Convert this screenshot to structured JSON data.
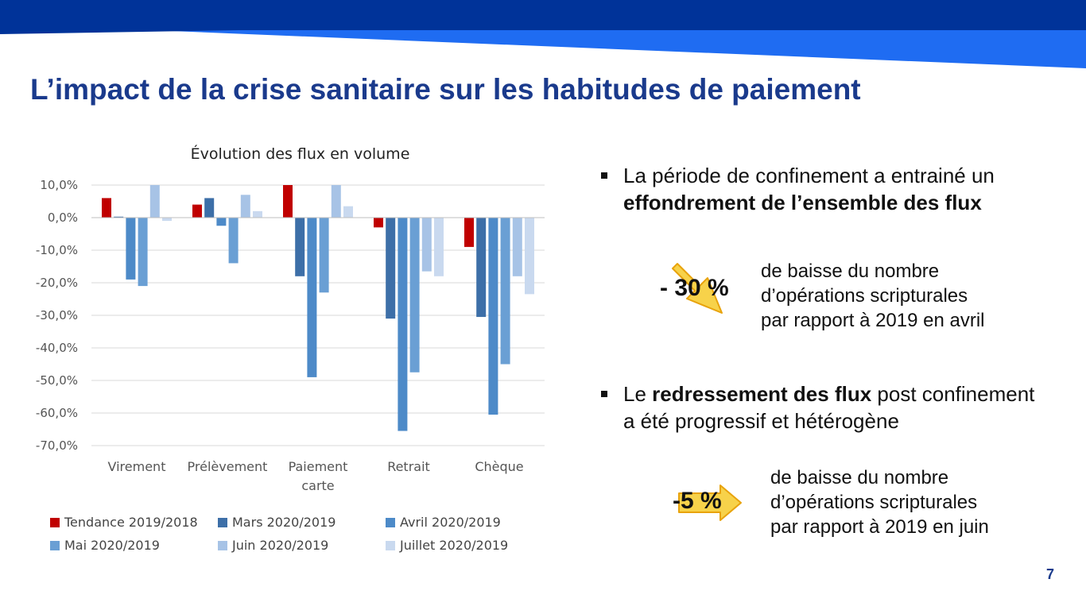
{
  "slide": {
    "title": "L’impact de la crise sanitaire sur les habitudes de paiement",
    "page_number": "7",
    "colors": {
      "title": "#1a3a8c",
      "banner_dark": "#003399",
      "banner_light": "#1f6cf2",
      "arrow_fill": "#f7d24a",
      "arrow_stroke": "#e8a30c"
    }
  },
  "bullets": [
    {
      "line1": "La période de confinement a entrainé un",
      "line2_bold": "effondrement de l’ensemble des flux"
    },
    {
      "prefix": "Le ",
      "bold": "redressement des flux",
      "suffix": " post confinement",
      "line2": "a été progressif et hétérogène"
    }
  ],
  "callouts": [
    {
      "value": "- 30 %",
      "icon": "arrow-down-right-icon",
      "lines": [
        "de baisse du nombre",
        "d’opérations scripturales",
        "par rapport à 2019 en avril"
      ]
    },
    {
      "value": "-5 %",
      "icon": "arrow-right-icon",
      "lines": [
        "de baisse du nombre",
        "d’opérations scripturales",
        "par rapport à 2019 en juin"
      ]
    }
  ],
  "chart_data": {
    "type": "bar",
    "title": "Évolution des flux en volume",
    "categories": [
      "Virement",
      "Prélèvement",
      "Paiement carte",
      "Retrait",
      "Chèque"
    ],
    "yticks": [
      "10,0%",
      "0,0%",
      "-10,0%",
      "-20,0%",
      "-30,0%",
      "-40,0%",
      "-50,0%",
      "-60,0%",
      "-70,0%"
    ],
    "ylim": [
      -70,
      10
    ],
    "grid": true,
    "legend_position": "bottom",
    "series": [
      {
        "name": "Tendance 2019/2018",
        "color": "#c00000",
        "values": [
          6,
          4,
          10,
          -3,
          -9
        ]
      },
      {
        "name": "Mars 2020/2019",
        "color": "#3d6fa8",
        "values": [
          0.3,
          6,
          -18,
          -31,
          -30.5
        ]
      },
      {
        "name": "Avril 2020/2019",
        "color": "#4d8ac8",
        "values": [
          -19,
          -2.5,
          -49,
          -65.5,
          -60.5
        ]
      },
      {
        "name": "Mai 2020/2019",
        "color": "#6a9fd4",
        "values": [
          -21,
          -14,
          -23,
          -47.5,
          -45
        ]
      },
      {
        "name": "Juin 2020/2019",
        "color": "#a7c3e6",
        "values": [
          10,
          7,
          10,
          -16.5,
          -18
        ]
      },
      {
        "name": "Juillet 2020/2019",
        "color": "#c9d9ef",
        "values": [
          -1,
          2,
          3.5,
          -18,
          -23.5
        ]
      }
    ]
  }
}
